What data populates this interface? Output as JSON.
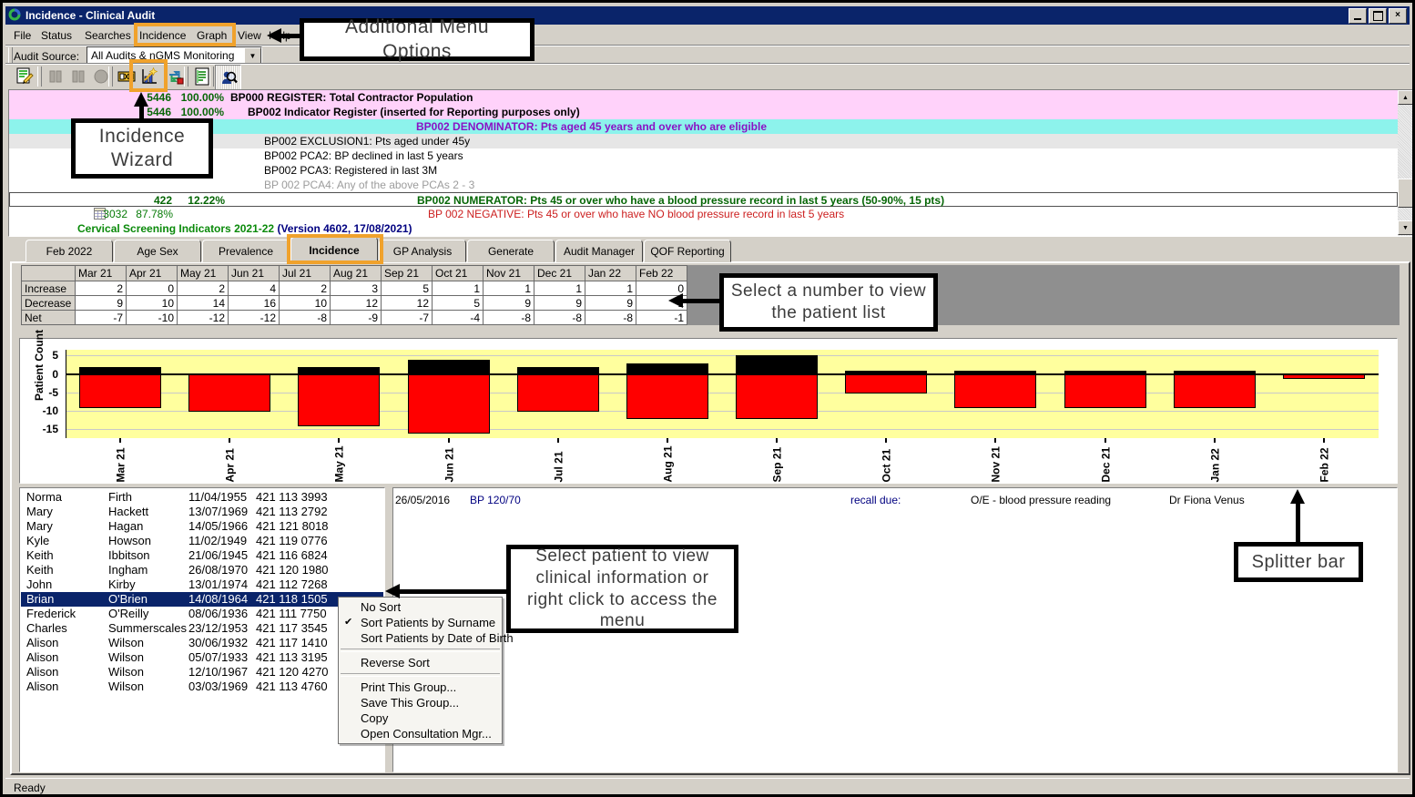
{
  "window": {
    "title": "Incidence - Clinical Audit",
    "status_bar": "Ready"
  },
  "menu_bar": {
    "items": [
      "File",
      "Status",
      "Searches",
      "Incidence",
      "Graph",
      "View",
      "Help"
    ]
  },
  "audit_source": {
    "label": "Audit Source:",
    "value": "All Audits & nGMS Monitoring"
  },
  "toolbar": {
    "icons": [
      {
        "name": "edit-audit-icon"
      },
      {
        "name": "pause-bars-icon",
        "disabled": true
      },
      {
        "name": "pause-bars-icon-2",
        "disabled": true
      },
      {
        "name": "stop-circle-icon",
        "disabled": true
      },
      {
        "name": "slide-review-icon"
      },
      {
        "name": "incidence-wizard-icon",
        "highlighted": true
      },
      {
        "name": "transfer-icon"
      },
      {
        "name": "report-icon"
      },
      {
        "name": "patient-search-icon",
        "active": true
      }
    ]
  },
  "audit_list": {
    "rows": [
      {
        "count": "5446",
        "pct": "100.00%",
        "text": "BP000 REGISTER: Total Contractor Population",
        "bg": "pink",
        "style": "bold-black",
        "indent": 243
      },
      {
        "count": "5446",
        "pct": "100.00%",
        "text": "BP002 Indicator Register (inserted for Reporting purposes only)",
        "bg": "pink",
        "style": "bold-black",
        "indent": 262
      },
      {
        "text": "BP002 DENOMINATOR: Pts aged 45 years and over who are eligible",
        "bg": "cyan",
        "style": "bold-purple",
        "indent": 447
      },
      {
        "text": "BP002 EXCLUSION1: Pts aged under 45y",
        "bg": "gray",
        "style": "plain",
        "indent": 280
      },
      {
        "text": "BP002 PCA2: BP declined in last 5 years",
        "bg": "white",
        "style": "plain",
        "indent": 280
      },
      {
        "text": "BP002 PCA3: Registered in last 3M",
        "bg": "white",
        "style": "plain",
        "indent": 280
      },
      {
        "text": "BP 002 PCA4: Any of the above PCAs 2 - 3",
        "bg": "white",
        "style": "dim",
        "indent": 280
      },
      {
        "count": "422",
        "pct": "12.22%",
        "text": "BP002 NUMERATOR: Pts 45 or over who have a blood pressure record in last 5 years (50-90%, 15 pts)",
        "bg": "white",
        "style": "bold-green",
        "indent": 447,
        "focused": true
      },
      {
        "count": "3032",
        "pct": "87.78%",
        "text": "BP 002 NEGATIVE: Pts 45 or over who have NO blood pressure record in last 5 years",
        "bg": "white",
        "style": "red",
        "indent": 460,
        "icon": "spreadsheet-icon",
        "numsmall": true
      },
      {
        "text": "Cervical Screening Indicators 2021-22",
        "text2": " (Version 4602, 17/08/2021)",
        "bg": "white",
        "style": "bold-darkgreen",
        "indent": 75
      }
    ]
  },
  "tabs": {
    "items": [
      "Feb 2022",
      "Age Sex",
      "Prevalence",
      "Incidence",
      "GP Analysis",
      "Generate",
      "Audit Manager",
      "QOF Reporting"
    ],
    "selected": "Incidence"
  },
  "incidence_grid": {
    "columns": [
      "Mar 21",
      "Apr 21",
      "May 21",
      "Jun 21",
      "Jul 21",
      "Aug 21",
      "Sep 21",
      "Oct 21",
      "Nov 21",
      "Dec 21",
      "Jan 22",
      "Feb 22"
    ],
    "rows": [
      {
        "label": "Increase",
        "values": [
          2,
          0,
          2,
          4,
          2,
          3,
          5,
          1,
          1,
          1,
          1,
          0
        ]
      },
      {
        "label": "Decrease",
        "values": [
          9,
          10,
          14,
          16,
          10,
          12,
          12,
          5,
          9,
          9,
          9,
          1
        ]
      },
      {
        "label": "Net",
        "values": [
          -7,
          -10,
          -12,
          -12,
          -8,
          -9,
          -7,
          -4,
          -8,
          -8,
          -8,
          -1
        ]
      }
    ]
  },
  "chart_data": {
    "type": "bar",
    "categories": [
      "Mar 21",
      "Apr 21",
      "May 21",
      "Jun 21",
      "Jul 21",
      "Aug 21",
      "Sep 21",
      "Oct 21",
      "Nov 21",
      "Dec 21",
      "Jan 22",
      "Feb 22"
    ],
    "series": [
      {
        "name": "Increase",
        "color": "#000000",
        "values": [
          2,
          0,
          2,
          4,
          2,
          3,
          5,
          1,
          1,
          1,
          1,
          0
        ]
      },
      {
        "name": "Decrease",
        "color": "#ff0000",
        "values": [
          -9,
          -10,
          -14,
          -16,
          -10,
          -12,
          -12,
          -5,
          -9,
          -9,
          -9,
          -1
        ]
      }
    ],
    "ylabel": "Patient Count",
    "xlabel": "",
    "yticks": [
      5,
      0,
      -5,
      -10,
      -15
    ],
    "ylim": [
      -17.4,
      6.6
    ],
    "plot_bg": "#ffff9e",
    "grid": true,
    "legend": "none",
    "bars_anchored_at_zero": true
  },
  "patient_list": {
    "selected_index": 7,
    "patients": [
      {
        "first": "Norma",
        "last": "Firth",
        "dob": "11/04/1955",
        "phone": "421 113 3993"
      },
      {
        "first": "Mary",
        "last": "Hackett",
        "dob": "13/07/1969",
        "phone": "421 113 2792"
      },
      {
        "first": "Mary",
        "last": "Hagan",
        "dob": "14/05/1966",
        "phone": "421 121 8018"
      },
      {
        "first": "Kyle",
        "last": "Howson",
        "dob": "11/02/1949",
        "phone": "421 119 0776"
      },
      {
        "first": "Keith",
        "last": "Ibbitson",
        "dob": "21/06/1945",
        "phone": "421 116 6824"
      },
      {
        "first": "Keith",
        "last": "Ingham",
        "dob": "26/08/1970",
        "phone": "421 120 1980"
      },
      {
        "first": "John",
        "last": "Kirby",
        "dob": "13/01/1974",
        "phone": "421 112 7268"
      },
      {
        "first": "Brian",
        "last": "O'Brien",
        "dob": "14/08/1964",
        "phone": "421 118 1505"
      },
      {
        "first": "Frederick",
        "last": "O'Reilly",
        "dob": "08/06/1936",
        "phone": "421 111 7750"
      },
      {
        "first": "Charles",
        "last": "Summerscales",
        "dob": "23/12/1953",
        "phone": "421 117 3545"
      },
      {
        "first": "Alison",
        "last": "Wilson",
        "dob": "30/06/1932",
        "phone": "421 117 1410"
      },
      {
        "first": "Alison",
        "last": "Wilson",
        "dob": "05/07/1933",
        "phone": "421 113 3195"
      },
      {
        "first": "Alison",
        "last": "Wilson",
        "dob": "12/10/1967",
        "phone": "421 120 4270"
      },
      {
        "first": "Alison",
        "last": "Wilson",
        "dob": "03/03/1969",
        "phone": "421 113 4760"
      }
    ]
  },
  "clinical_record": {
    "date": "26/05/2016",
    "reading": "BP  120/70",
    "recall_label": "recall due:",
    "recall_item": "O/E - blood pressure reading",
    "doctor": "Dr Fiona Venus"
  },
  "context_menu": {
    "items": [
      {
        "label": "No Sort"
      },
      {
        "label": "Sort Patients by Surname",
        "checked": true
      },
      {
        "label": "Sort Patients by Date of Birth"
      },
      {
        "separator": true
      },
      {
        "label": "Reverse Sort"
      },
      {
        "separator": true
      },
      {
        "label": "Print This Group..."
      },
      {
        "label": "Save This Group..."
      },
      {
        "label": "Copy"
      },
      {
        "label": "Open Consultation Mgr..."
      }
    ]
  },
  "annotations": {
    "additional_menu": "Additional Menu Options",
    "incidence_wizard": "Incidence Wizard",
    "select_number": "Select a number to view the patient list",
    "select_patient": "Select patient to view clinical information or right click to access the menu",
    "splitter_bar": "Splitter bar"
  },
  "colors": {
    "titlebar": "#0a246a",
    "selection": "#0a246a",
    "row_pink": "#ffd2fa",
    "row_cyan": "#8df3ec",
    "row_gray": "#e6e6e6",
    "chart_plot_bg": "#ffff9e",
    "bar_increase": "#000000",
    "bar_decrease": "#ff0000",
    "highlight_orange": "#f0a22c",
    "text_green": "#066606",
    "text_red": "#cc2020",
    "text_purple": "#8a12c4",
    "text_navy": "#000080",
    "grid_gray_fill": "#8f8f8f"
  }
}
